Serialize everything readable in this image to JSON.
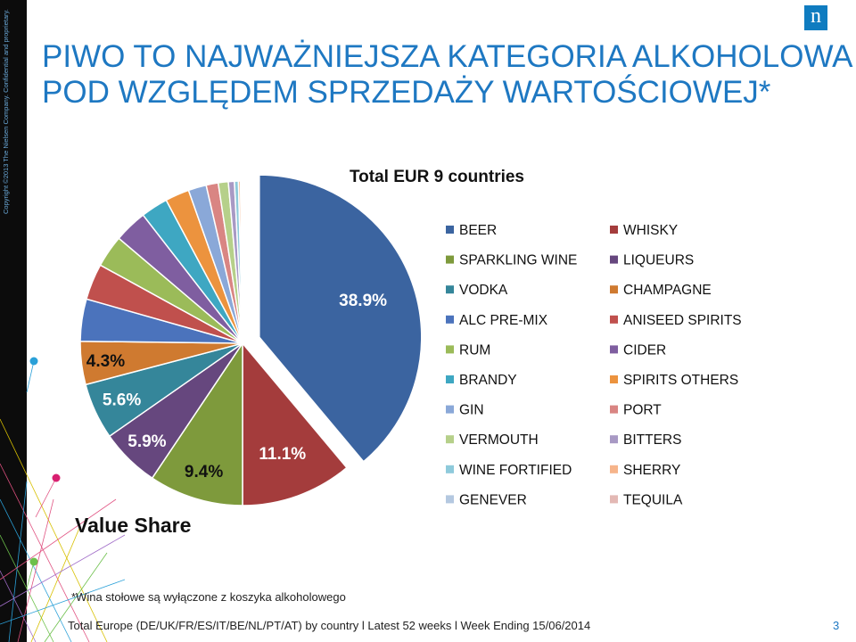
{
  "slide": {
    "copyright": "Copyright ©2013 The Nielsen Company. Confidential and proprietary.",
    "logo_text": "n",
    "title_line1": "PIWO TO NAJWAŻNIEJSZA KATEGORIA ALKOHOLOWA",
    "title_line2": "POD WZGLĘDEM SPRZEDAŻY WARTOŚCIOWEJ*",
    "footnote": "*Wina stołowe są wyłączone z koszyka alkoholowego",
    "source": "Total Europe (DE/UK/FR/ES/IT/BE/NL/PT/AT) by country l Latest 52 weeks l Week Ending 15/06/2014",
    "page_number": "3",
    "title_color": "#1e78c2",
    "logo_color": "#0f7cc0"
  },
  "chart_data": {
    "type": "pie",
    "title": "Total EUR 9 countries",
    "caption": "Value Share",
    "unit": "%",
    "exploded_slice": "BEER",
    "legend_position": "right",
    "slices": [
      {
        "name": "BEER",
        "value": 38.9,
        "label": "38.9%",
        "color": "#3b64a0"
      },
      {
        "name": "WHISKY",
        "value": 11.1,
        "label": "11.1%",
        "color": "#a43c3c"
      },
      {
        "name": "SPARKLING WINE",
        "value": 9.4,
        "label": "9.4%",
        "color": "#7e9a3c"
      },
      {
        "name": "LIQUEURS",
        "value": 5.9,
        "label": "5.9%",
        "color": "#66477e"
      },
      {
        "name": "VODKA",
        "value": 5.6,
        "label": "5.6%",
        "color": "#35869a"
      },
      {
        "name": "CHAMPAGNE",
        "value": 4.3,
        "label": "4.3%",
        "color": "#cf7a30"
      },
      {
        "name": "ALC PRE-MIX",
        "value": 4.2,
        "label": "",
        "color": "#4b73bc"
      },
      {
        "name": "ANISEED SPIRITS",
        "value": 3.6,
        "label": "",
        "color": "#c0504d"
      },
      {
        "name": "RUM",
        "value": 3.2,
        "label": "",
        "color": "#9bbb59"
      },
      {
        "name": "CIDER",
        "value": 3.3,
        "label": "",
        "color": "#7f5ea0"
      },
      {
        "name": "BRANDY",
        "value": 2.7,
        "label": "",
        "color": "#3ea7c2"
      },
      {
        "name": "SPIRITS OTHERS",
        "value": 2.4,
        "label": "",
        "color": "#ec933e"
      },
      {
        "name": "GIN",
        "value": 1.8,
        "label": "",
        "color": "#8aa8d8"
      },
      {
        "name": "PORT",
        "value": 1.2,
        "label": "",
        "color": "#d98583"
      },
      {
        "name": "VERMOUTH",
        "value": 1.0,
        "label": "",
        "color": "#b6d08a"
      },
      {
        "name": "BITTERS",
        "value": 0.6,
        "label": "",
        "color": "#a899c4"
      },
      {
        "name": "WINE FORTIFIED",
        "value": 0.4,
        "label": "",
        "color": "#8ecadb"
      },
      {
        "name": "SHERRY",
        "value": 0.2,
        "label": "",
        "color": "#f6b48a"
      },
      {
        "name": "GENEVER",
        "value": 0.1,
        "label": "",
        "color": "#b4c8e0"
      },
      {
        "name": "TEQUILA",
        "value": 0.1,
        "label": "",
        "color": "#e3b8b4"
      }
    ],
    "legend": [
      "BEER",
      "WHISKY",
      "SPARKLING WINE",
      "LIQUEURS",
      "VODKA",
      "CHAMPAGNE",
      "ALC PRE-MIX",
      "ANISEED SPIRITS",
      "RUM",
      "CIDER",
      "BRANDY",
      "SPIRITS OTHERS",
      "GIN",
      "PORT",
      "VERMOUTH",
      "BITTERS",
      "WINE FORTIFIED",
      "SHERRY",
      "GENEVER",
      "TEQUILA"
    ]
  }
}
